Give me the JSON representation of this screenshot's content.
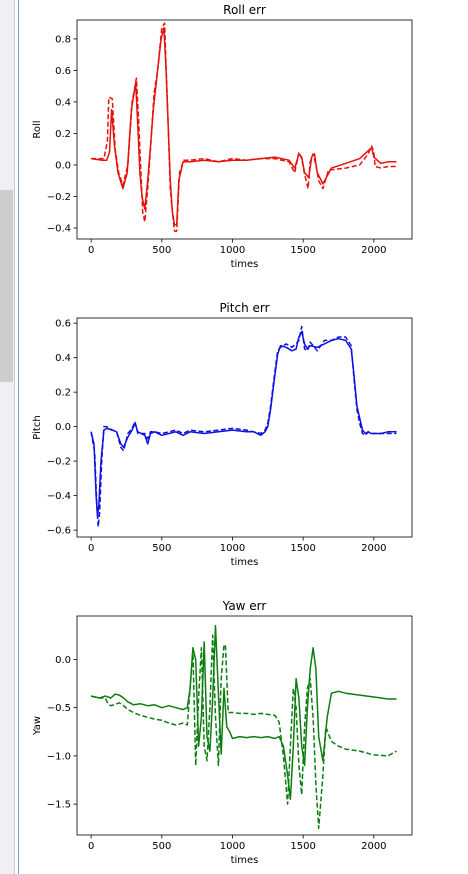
{
  "colors": {
    "roll": "#e8110c",
    "pitch": "#1010e0",
    "yaw": "#0c7d10"
  },
  "chart_data": [
    {
      "type": "line",
      "title": "Roll err",
      "xlabel": "times",
      "ylabel": "Roll",
      "xlim": [
        -100,
        2270
      ],
      "ylim": [
        -0.47,
        0.92
      ],
      "xticks": [
        0,
        500,
        1000,
        1500,
        2000
      ],
      "yticks": [
        -0.4,
        -0.2,
        0.0,
        0.2,
        0.4,
        0.6,
        0.8
      ],
      "ytick_decimals": 1,
      "series": [
        {
          "style": "solid",
          "x": [
            0,
            80,
            110,
            130,
            145,
            165,
            190,
            225,
            255,
            285,
            315,
            330,
            345,
            360,
            380,
            400,
            420,
            440,
            470,
            495,
            515,
            530,
            545,
            560,
            575,
            590,
            605,
            620,
            650,
            700,
            800,
            900,
            1000,
            1100,
            1200,
            1300,
            1400,
            1440,
            1470,
            1490,
            1510,
            1540,
            1560,
            1580,
            1600,
            1640,
            1700,
            1800,
            1900,
            1960,
            1985,
            2000,
            2050,
            2100,
            2160
          ],
          "y": [
            0.04,
            0.03,
            0.03,
            0.08,
            0.35,
            0.12,
            -0.05,
            -0.15,
            -0.05,
            0.35,
            0.52,
            0.25,
            -0.05,
            -0.2,
            -0.28,
            -0.1,
            0.12,
            0.35,
            0.6,
            0.8,
            0.87,
            0.6,
            0.25,
            -0.1,
            -0.3,
            -0.38,
            -0.38,
            -0.1,
            0.02,
            0.02,
            0.03,
            0.02,
            0.03,
            0.03,
            0.04,
            0.05,
            0.03,
            -0.02,
            0.07,
            0.05,
            -0.05,
            -0.08,
            0.05,
            0.07,
            -0.05,
            -0.12,
            -0.02,
            0.01,
            0.04,
            0.09,
            0.11,
            0.05,
            0.01,
            0.02,
            0.02
          ]
        },
        {
          "style": "dashed",
          "x": [
            0,
            90,
            115,
            125,
            150,
            170,
            195,
            225,
            260,
            290,
            320,
            335,
            350,
            365,
            380,
            400,
            420,
            445,
            470,
            500,
            520,
            530,
            545,
            560,
            575,
            590,
            605,
            625,
            655,
            700,
            800,
            900,
            1000,
            1100,
            1200,
            1300,
            1400,
            1440,
            1470,
            1490,
            1510,
            1535,
            1550,
            1570,
            1590,
            1610,
            1640,
            1680,
            1700,
            1800,
            1900,
            1960,
            1985,
            2000,
            2010,
            2050,
            2100,
            2160
          ],
          "y": [
            0.04,
            0.04,
            0.15,
            0.43,
            0.42,
            0.1,
            -0.05,
            -0.13,
            0.0,
            0.4,
            0.55,
            0.3,
            0.0,
            -0.3,
            -0.36,
            -0.15,
            0.1,
            0.45,
            0.6,
            0.87,
            0.9,
            0.62,
            0.25,
            -0.15,
            -0.3,
            -0.42,
            -0.42,
            -0.05,
            0.03,
            0.03,
            0.04,
            0.02,
            0.04,
            0.03,
            0.04,
            0.04,
            0.02,
            -0.05,
            0.08,
            0.04,
            -0.06,
            -0.15,
            0.02,
            0.07,
            0.0,
            -0.1,
            -0.15,
            -0.03,
            -0.03,
            -0.02,
            0.0,
            0.07,
            0.12,
            0.08,
            -0.01,
            -0.02,
            -0.01,
            -0.01
          ]
        }
      ]
    },
    {
      "type": "line",
      "title": "Pitch err",
      "xlabel": "times",
      "ylabel": "Pitch",
      "xlim": [
        -100,
        2270
      ],
      "ylim": [
        -0.64,
        0.63
      ],
      "xticks": [
        0,
        500,
        1000,
        1500,
        2000
      ],
      "yticks": [
        -0.6,
        -0.4,
        -0.2,
        0.0,
        0.2,
        0.4,
        0.6
      ],
      "ytick_decimals": 1,
      "series": [
        {
          "style": "solid",
          "x": [
            0,
            20,
            35,
            45,
            55,
            70,
            90,
            110,
            150,
            180,
            210,
            230,
            260,
            290,
            310,
            330,
            380,
            400,
            420,
            450,
            500,
            550,
            600,
            650,
            700,
            800,
            900,
            1000,
            1100,
            1150,
            1200,
            1230,
            1250,
            1270,
            1300,
            1320,
            1340,
            1380,
            1420,
            1450,
            1470,
            1490,
            1510,
            1530,
            1550,
            1600,
            1650,
            1700,
            1750,
            1800,
            1840,
            1860,
            1880,
            1900,
            1920,
            1940,
            1960,
            1980,
            2000,
            2050,
            2100,
            2160
          ],
          "y": [
            -0.03,
            -0.1,
            -0.4,
            -0.52,
            -0.45,
            -0.2,
            -0.02,
            -0.01,
            -0.02,
            -0.03,
            -0.1,
            -0.12,
            -0.06,
            -0.02,
            0.02,
            -0.03,
            -0.05,
            -0.1,
            -0.04,
            -0.03,
            -0.05,
            -0.04,
            -0.03,
            -0.05,
            -0.03,
            -0.04,
            -0.03,
            -0.02,
            -0.03,
            -0.03,
            -0.05,
            -0.03,
            0.0,
            0.1,
            0.3,
            0.42,
            0.47,
            0.46,
            0.44,
            0.45,
            0.52,
            0.55,
            0.48,
            0.45,
            0.47,
            0.46,
            0.48,
            0.5,
            0.51,
            0.5,
            0.45,
            0.3,
            0.12,
            0.05,
            -0.02,
            -0.04,
            -0.03,
            -0.04,
            -0.04,
            -0.04,
            -0.03,
            -0.03
          ]
        },
        {
          "style": "dashed",
          "x": [
            0,
            25,
            40,
            50,
            60,
            75,
            90,
            110,
            150,
            180,
            210,
            230,
            260,
            290,
            310,
            330,
            380,
            400,
            420,
            450,
            500,
            550,
            600,
            650,
            700,
            800,
            900,
            1000,
            1100,
            1150,
            1200,
            1230,
            1250,
            1270,
            1300,
            1320,
            1340,
            1380,
            1420,
            1450,
            1470,
            1490,
            1510,
            1530,
            1550,
            1600,
            1650,
            1700,
            1750,
            1800,
            1840,
            1860,
            1880,
            1900,
            1920,
            1940,
            1960,
            1980,
            2000,
            2050,
            2100,
            2160
          ],
          "y": [
            -0.03,
            -0.15,
            -0.45,
            -0.58,
            -0.5,
            -0.2,
            0.0,
            0.0,
            -0.02,
            -0.03,
            -0.12,
            -0.14,
            -0.04,
            -0.01,
            0.03,
            -0.04,
            -0.04,
            -0.07,
            -0.03,
            -0.03,
            -0.04,
            -0.03,
            -0.02,
            -0.04,
            -0.02,
            -0.03,
            -0.02,
            -0.01,
            -0.02,
            -0.03,
            -0.04,
            -0.02,
            0.02,
            0.12,
            0.32,
            0.44,
            0.46,
            0.48,
            0.46,
            0.48,
            0.5,
            0.58,
            0.45,
            0.44,
            0.49,
            0.44,
            0.5,
            0.5,
            0.52,
            0.52,
            0.47,
            0.28,
            0.1,
            0.02,
            -0.04,
            -0.05,
            -0.03,
            -0.04,
            -0.04,
            -0.04,
            -0.04,
            -0.04
          ]
        }
      ]
    },
    {
      "type": "line",
      "title": "Yaw err",
      "xlabel": "times",
      "ylabel": "Yaw",
      "xlim": [
        -100,
        2270
      ],
      "ylim": [
        -1.82,
        0.45
      ],
      "xticks": [
        0,
        500,
        1000,
        1500,
        2000
      ],
      "yticks": [
        -1.5,
        -1.0,
        -0.5,
        0.0
      ],
      "ytick_decimals": 1,
      "series": [
        {
          "style": "solid",
          "x": [
            0,
            60,
            100,
            140,
            170,
            200,
            230,
            260,
            300,
            350,
            400,
            450,
            500,
            550,
            600,
            650,
            680,
            700,
            720,
            740,
            760,
            780,
            800,
            820,
            840,
            860,
            880,
            900,
            920,
            940,
            960,
            980,
            1000,
            1050,
            1100,
            1150,
            1200,
            1250,
            1300,
            1330,
            1360,
            1390,
            1410,
            1430,
            1450,
            1470,
            1490,
            1510,
            1530,
            1550,
            1570,
            1590,
            1610,
            1640,
            1670,
            1700,
            1750,
            1800,
            1900,
            2000,
            2100,
            2160
          ],
          "y": [
            -0.38,
            -0.4,
            -0.38,
            -0.4,
            -0.36,
            -0.37,
            -0.4,
            -0.44,
            -0.47,
            -0.46,
            -0.48,
            -0.47,
            -0.5,
            -0.48,
            -0.5,
            -0.52,
            -0.5,
            -0.3,
            0.12,
            0.0,
            -0.9,
            -0.6,
            0.18,
            -0.8,
            -0.95,
            -0.4,
            0.35,
            -0.35,
            -0.98,
            -0.3,
            -0.7,
            -0.75,
            -0.82,
            -0.8,
            -0.81,
            -0.8,
            -0.81,
            -0.8,
            -0.82,
            -0.8,
            -0.9,
            -1.2,
            -1.45,
            -0.9,
            -0.2,
            -0.4,
            -0.9,
            -1.1,
            -0.5,
            -0.1,
            0.12,
            -0.1,
            -0.8,
            -1.05,
            -0.6,
            -0.35,
            -0.33,
            -0.35,
            -0.37,
            -0.39,
            -0.41,
            -0.41
          ]
        },
        {
          "style": "dashed",
          "x": [
            0,
            60,
            100,
            120,
            140,
            160,
            200,
            230,
            260,
            300,
            350,
            400,
            450,
            500,
            550,
            600,
            650,
            680,
            700,
            720,
            740,
            760,
            780,
            800,
            820,
            840,
            860,
            880,
            900,
            920,
            940,
            950,
            970,
            1000,
            1050,
            1100,
            1150,
            1200,
            1250,
            1300,
            1330,
            1360,
            1390,
            1410,
            1430,
            1450,
            1470,
            1490,
            1510,
            1530,
            1550,
            1570,
            1590,
            1610,
            1640,
            1660,
            1700,
            1750,
            1800,
            1900,
            2000,
            2100,
            2160
          ],
          "y": [
            -0.38,
            -0.4,
            -0.4,
            -0.46,
            -0.48,
            -0.47,
            -0.45,
            -0.48,
            -0.52,
            -0.55,
            -0.58,
            -0.6,
            -0.62,
            -0.63,
            -0.66,
            -0.68,
            -0.66,
            -0.68,
            -0.3,
            0.1,
            -1.1,
            -0.4,
            0.12,
            -0.9,
            -1.05,
            -0.5,
            0.25,
            -0.6,
            -1.1,
            -0.2,
            0.15,
            0.15,
            -0.55,
            -0.55,
            -0.56,
            -0.56,
            -0.57,
            -0.56,
            -0.57,
            -0.58,
            -0.65,
            -1.0,
            -1.5,
            -0.9,
            -0.3,
            -0.5,
            -1.1,
            -1.4,
            -0.7,
            -0.3,
            -0.2,
            -0.6,
            -1.3,
            -1.75,
            -1.2,
            -0.7,
            -0.85,
            -0.9,
            -0.93,
            -0.95,
            -0.99,
            -1.0,
            -0.95
          ]
        }
      ]
    }
  ]
}
